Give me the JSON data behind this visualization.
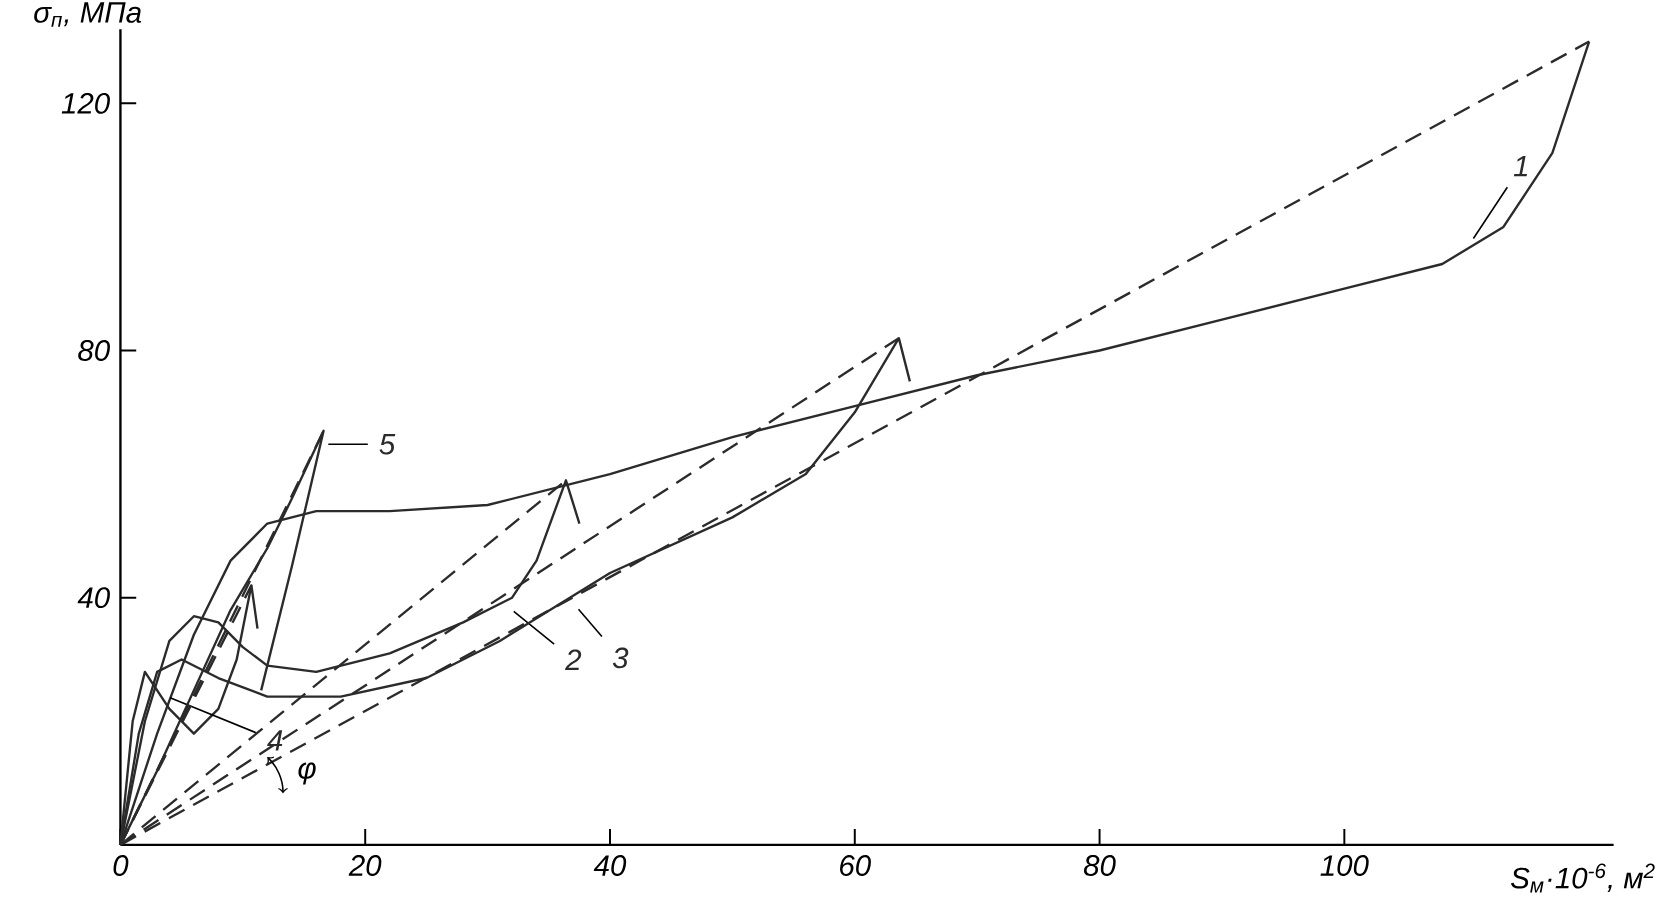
{
  "chart_data": {
    "type": "line",
    "xlabel": "S$_{м}$·10$^{-6}$, м$^{2}$",
    "ylabel": "σ$_{п}$, МПа",
    "xlim": [
      0,
      122
    ],
    "ylim": [
      0,
      132
    ],
    "xticks": [
      0,
      20,
      40,
      60,
      80,
      100
    ],
    "yticks": [
      40,
      80,
      120
    ],
    "grid": false,
    "marker": "none",
    "line_style": "solid",
    "annotations": [
      "φ"
    ],
    "series": [
      {
        "name": "1",
        "color": "#2b2b2b",
        "x": [
          0,
          3,
          6,
          9,
          12,
          16,
          22,
          30,
          40,
          50,
          60,
          70,
          80,
          90,
          100,
          108,
          113,
          117,
          120
        ],
        "values": [
          0,
          18,
          34,
          46,
          52,
          54,
          54,
          55,
          60,
          66,
          71,
          76,
          80,
          85,
          90,
          94,
          100,
          112,
          130
        ]
      },
      {
        "name": "2",
        "color": "#2b2b2b",
        "x": [
          0,
          2,
          4,
          6,
          8,
          10,
          12,
          16,
          22,
          28,
          32,
          34,
          36.4,
          37.5
        ],
        "values": [
          0,
          20,
          33,
          37,
          36,
          32,
          29,
          28,
          31,
          36,
          40,
          46,
          59,
          52
        ]
      },
      {
        "name": "3",
        "color": "#2b2b2b",
        "x": [
          0,
          1.5,
          3,
          5,
          8,
          12,
          18,
          25,
          31,
          40,
          50,
          56,
          60,
          63.6,
          64.5
        ],
        "values": [
          0,
          18,
          28,
          30,
          27,
          24,
          24,
          27,
          33,
          44,
          53,
          60,
          70,
          82,
          75
        ]
      },
      {
        "name": "4",
        "color": "#2b2b2b",
        "x": [
          0,
          1,
          2,
          4,
          6,
          8,
          9.5,
          10.7,
          11.2
        ],
        "values": [
          0,
          20,
          28,
          22,
          18,
          22,
          30,
          42,
          35
        ]
      },
      {
        "name": "5",
        "color": "#2b2b2b",
        "x": [
          0,
          3,
          6,
          9,
          12,
          14,
          16.6,
          14,
          11.5
        ],
        "values": [
          0,
          12,
          25,
          38,
          48,
          56,
          67,
          45,
          25
        ]
      },
      {
        "color": "#2b2b2b",
        "line_style": "dashed",
        "x": [
          0,
          120
        ],
        "values": [
          0,
          130
        ]
      },
      {
        "color": "#2b2b2b",
        "line_style": "dashed",
        "x": [
          0,
          63.6
        ],
        "values": [
          0,
          82
        ]
      },
      {
        "color": "#2b2b2b",
        "line_style": "dashed",
        "x": [
          0,
          36.4
        ],
        "values": [
          0,
          59
        ]
      },
      {
        "color": "#2b2b2b",
        "line_style": "dashed",
        "x": [
          0,
          16.6
        ],
        "values": [
          0,
          67
        ]
      },
      {
        "color": "#2b2b2b",
        "line_style": "dashed",
        "x": [
          0,
          10.7
        ],
        "values": [
          0,
          42
        ]
      }
    ]
  }
}
